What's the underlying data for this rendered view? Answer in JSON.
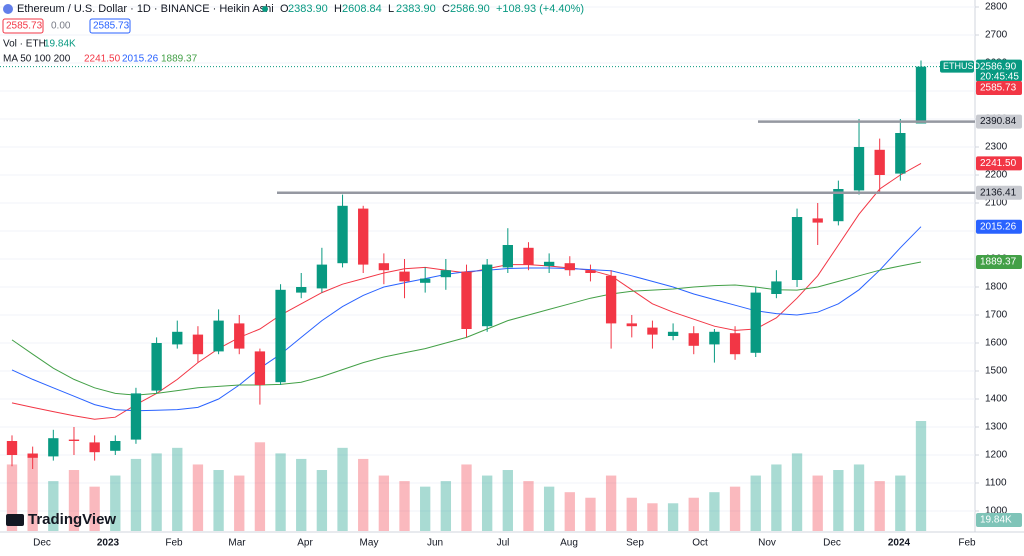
{
  "chart_data": {
    "type": "candlestick",
    "header": {
      "title": "Ethereum / U.S. Dollar · 1D · BINANCE · Heikin Ashi",
      "ohlc": [
        {
          "key": "O",
          "value": "2383.90"
        },
        {
          "key": "H",
          "value": "2608.84"
        },
        {
          "key": "L",
          "value": "2383.90"
        },
        {
          "key": "C",
          "value": "2586.90"
        }
      ],
      "change": "+108.93 (+4.40%)",
      "buttons": [
        "2585.73",
        "0.00",
        "2585.73"
      ],
      "vol_legend": "Vol · ETH",
      "vol_value": "19.84K",
      "ma_legend": "MA 50 100 200"
    },
    "symbol": "ETHUSD",
    "countdown": "20:45:45",
    "watermark": "TradingView",
    "xticks": [
      "Dec",
      "2023",
      "Feb",
      "Mar",
      "Apr",
      "May",
      "Jun",
      "Jul",
      "Aug",
      "Sep",
      "Oct",
      "Nov",
      "Dec",
      "2024",
      "Feb"
    ],
    "ylim": [
      1000,
      2800
    ],
    "yticks": [
      1000,
      1100,
      1200,
      1300,
      1400,
      1500,
      1600,
      1700,
      1800,
      1900,
      2000,
      2100,
      2200,
      2300,
      2400,
      2500,
      2600,
      2700,
      2800
    ],
    "up_color": "#089981",
    "down_color": "#f23645",
    "open": [
      1250,
      1205,
      1195,
      1255,
      1245,
      1215,
      1255,
      1430,
      1595,
      1630,
      1570,
      1670,
      1570,
      1460,
      1780,
      1795,
      1885,
      2080,
      1885,
      1855,
      1815,
      1835,
      1855,
      1660,
      1870,
      1940,
      1875,
      1885,
      1860,
      1840,
      1670,
      1655,
      1625,
      1635,
      1595,
      1635,
      1565,
      1775,
      1825,
      2045,
      2035,
      2145,
      2290,
      2205,
      2383.9
    ],
    "high": [
      1270,
      1230,
      1290,
      1300,
      1270,
      1270,
      1440,
      1620,
      1680,
      1660,
      1720,
      1700,
      1580,
      1810,
      1850,
      1940,
      2130,
      2090,
      1920,
      1900,
      1870,
      1900,
      1880,
      1900,
      2010,
      1960,
      1920,
      1910,
      1880,
      1860,
      1700,
      1680,
      1670,
      1660,
      1650,
      1660,
      1800,
      1860,
      2080,
      2100,
      2180,
      2400,
      2330,
      2400,
      2608.84
    ],
    "low": [
      1160,
      1150,
      1180,
      1200,
      1180,
      1200,
      1240,
      1420,
      1580,
      1530,
      1560,
      1560,
      1380,
      1450,
      1760,
      1780,
      1870,
      1850,
      1810,
      1760,
      1780,
      1790,
      1620,
      1640,
      1850,
      1860,
      1850,
      1840,
      1820,
      1580,
      1620,
      1580,
      1610,
      1560,
      1530,
      1540,
      1550,
      1760,
      1800,
      1950,
      2020,
      2130,
      2140,
      2180,
      2383.9
    ],
    "close": [
      1200,
      1190,
      1260,
      1250,
      1210,
      1250,
      1420,
      1600,
      1640,
      1560,
      1680,
      1580,
      1450,
      1790,
      1800,
      1880,
      2090,
      1880,
      1860,
      1820,
      1830,
      1860,
      1650,
      1880,
      1950,
      1880,
      1890,
      1860,
      1850,
      1670,
      1660,
      1630,
      1640,
      1590,
      1640,
      1560,
      1780,
      1820,
      2050,
      2030,
      2150,
      2300,
      2200,
      2350,
      2586.9
    ],
    "volume": [
      12,
      14,
      9,
      11,
      8,
      10,
      13,
      14,
      15,
      12,
      11,
      10,
      16,
      14,
      13,
      11,
      15,
      13,
      10,
      9,
      8,
      9,
      12,
      10,
      11,
      9,
      8,
      7,
      6,
      10,
      6,
      5,
      5,
      6,
      7,
      8,
      10,
      12,
      14,
      10,
      11,
      12,
      9,
      10,
      19.84
    ],
    "ma": [
      {
        "name": "MA 50",
        "color": "#f23645",
        "values": [
          1386,
          1370,
          1355,
          1340,
          1328,
          1335,
          1380,
          1420,
          1470,
          1530,
          1580,
          1620,
          1650,
          1700,
          1740,
          1780,
          1810,
          1830,
          1850,
          1865,
          1870,
          1860,
          1850,
          1865,
          1880,
          1880,
          1875,
          1868,
          1860,
          1840,
          1790,
          1740,
          1710,
          1685,
          1660,
          1645,
          1650,
          1690,
          1760,
          1840,
          1950,
          2060,
          2150,
          2200,
          2241.5
        ]
      },
      {
        "name": "MA 100",
        "color": "#2962ff",
        "values": [
          1504,
          1470,
          1440,
          1410,
          1380,
          1362,
          1358,
          1360,
          1362,
          1370,
          1400,
          1450,
          1510,
          1560,
          1620,
          1680,
          1730,
          1770,
          1800,
          1815,
          1830,
          1845,
          1855,
          1860,
          1866,
          1868,
          1868,
          1866,
          1862,
          1858,
          1840,
          1820,
          1800,
          1775,
          1755,
          1735,
          1715,
          1705,
          1700,
          1710,
          1740,
          1790,
          1860,
          1940,
          2015.26
        ]
      },
      {
        "name": "MA 200",
        "color": "#43a047",
        "values": [
          1611,
          1560,
          1510,
          1470,
          1440,
          1420,
          1414,
          1420,
          1430,
          1440,
          1445,
          1450,
          1450,
          1452,
          1460,
          1480,
          1505,
          1530,
          1550,
          1565,
          1580,
          1600,
          1620,
          1650,
          1680,
          1700,
          1720,
          1740,
          1760,
          1775,
          1785,
          1789,
          1793,
          1800,
          1805,
          1807,
          1800,
          1790,
          1789,
          1800,
          1820,
          1840,
          1860,
          1875,
          1889.37
        ]
      }
    ],
    "price_lines": [
      2390.84,
      2136.41
    ],
    "price_labels": [
      {
        "value": 2586.9,
        "label": "2586.90",
        "color": "#089981"
      },
      {
        "value": 2585.73,
        "label": "2585.73",
        "color": "#f23645"
      },
      {
        "value": 2390.84,
        "label": "2390.84",
        "color": "#c8cad0"
      },
      {
        "value": 2241.5,
        "label": "2241.50",
        "color": "#f23645"
      },
      {
        "value": 2136.41,
        "label": "2136.41",
        "color": "#c8cad0"
      },
      {
        "value": 2015.26,
        "label": "2015.26",
        "color": "#2962ff"
      },
      {
        "value": 1889.37,
        "label": "1889.37",
        "color": "#43a047"
      }
    ]
  }
}
